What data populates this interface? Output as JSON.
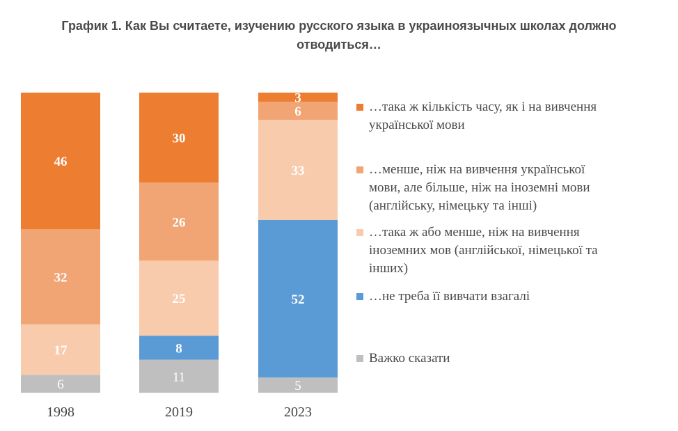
{
  "title_line1": "График 1. Как Вы считаете, изучению русского языка в украиноязычных школах должно",
  "title_line2": "отводиться…",
  "chart_data": {
    "type": "bar",
    "stacked": true,
    "orientation": "vertical",
    "categories": [
      "1998",
      "2019",
      "2023"
    ],
    "series": [
      {
        "name": "…така ж кількість часу, як і на вивчення української мови",
        "color": "#ED7D31",
        "values": [
          46,
          30,
          3
        ]
      },
      {
        "name": "…менше, ніж на вивчення української мови, але більше, ніж на іноземні мови (англійську, німецьку та інші)",
        "color": "#F1A574",
        "values": [
          32,
          26,
          6
        ]
      },
      {
        "name": "…така ж або менше, ніж на вивчення іноземних мов (англійської, німецької та інших)",
        "color": "#F8CBAD",
        "values": [
          17,
          25,
          33
        ]
      },
      {
        "name": "…не треба її вивчати взагалі",
        "color": "#5B9BD5",
        "values": [
          0,
          8,
          52
        ]
      },
      {
        "name": "Важко сказати",
        "color": "#BFBFBF",
        "values": [
          6,
          11,
          5
        ]
      }
    ],
    "legend": {
      "position": "right",
      "entries": [
        [
          "…така ж кількість часу, як і на вивчення",
          "української мови"
        ],
        [
          "…менше, ніж на вивчення української",
          "мови, але більше, ніж на іноземні мови",
          "(англійську, німецьку та інші)"
        ],
        [
          "…така ж або менше, ніж на вивчення",
          "іноземних мов (англійської, німецької та",
          "інших)"
        ],
        [
          "…не треба її вивчати взагалі"
        ],
        [
          "Важко сказати"
        ]
      ]
    }
  }
}
